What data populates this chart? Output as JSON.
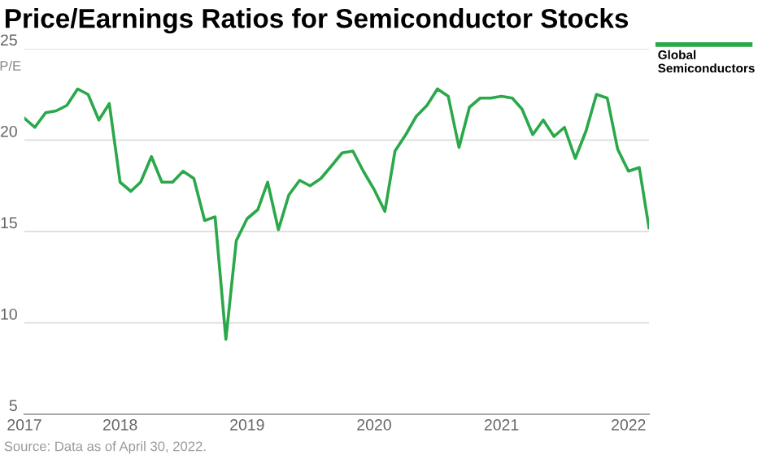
{
  "chart_data": {
    "type": "line",
    "title": "Price/Earnings Ratios for Semiconductor Stocks",
    "ylabel": "P/E",
    "x": [
      "2017-04",
      "2017-05",
      "2017-06",
      "2017-07",
      "2017-08",
      "2017-09",
      "2017-10",
      "2017-11",
      "2017-12",
      "2018-01",
      "2018-02",
      "2018-03",
      "2018-04",
      "2018-05",
      "2018-06",
      "2018-07",
      "2018-08",
      "2018-09",
      "2018-10",
      "2018-11",
      "2018-12",
      "2019-01",
      "2019-02",
      "2019-03",
      "2019-04",
      "2019-05",
      "2019-06",
      "2019-07",
      "2019-08",
      "2019-09",
      "2019-10",
      "2019-11",
      "2019-12",
      "2020-01",
      "2020-02",
      "2020-03",
      "2020-04",
      "2020-05",
      "2020-06",
      "2020-07",
      "2020-08",
      "2020-09",
      "2020-10",
      "2020-11",
      "2020-12",
      "2021-01",
      "2021-02",
      "2021-03",
      "2021-04",
      "2021-05",
      "2021-06",
      "2021-07",
      "2021-08",
      "2021-09",
      "2021-10",
      "2021-11",
      "2021-12",
      "2022-01",
      "2022-02",
      "2022-03"
    ],
    "series": [
      {
        "name": "Global Semiconductors",
        "color": "#2aa84a",
        "values": [
          21.2,
          20.7,
          21.5,
          21.6,
          21.9,
          22.8,
          22.5,
          21.1,
          22.0,
          17.7,
          17.2,
          17.7,
          19.1,
          17.7,
          17.7,
          18.3,
          17.9,
          15.6,
          15.8,
          9.1,
          14.5,
          15.7,
          16.2,
          17.7,
          15.1,
          17.0,
          17.8,
          17.5,
          17.9,
          18.6,
          19.3,
          19.4,
          18.3,
          17.3,
          16.1,
          19.4,
          20.3,
          21.3,
          21.9,
          22.8,
          22.4,
          19.6,
          21.8,
          22.3,
          22.3,
          22.4,
          22.3,
          21.7,
          20.3,
          21.1,
          20.2,
          20.7,
          19.0,
          20.5,
          22.5,
          22.3,
          19.5,
          18.3,
          18.5,
          15.2
        ]
      }
    ],
    "xlim": [
      "2017-04",
      "2022-03"
    ],
    "xticks": [
      {
        "value": "2017-04",
        "label": "2017"
      },
      {
        "value": "2018-01",
        "label": "2018"
      },
      {
        "value": "2019-01",
        "label": "2019"
      },
      {
        "value": "2020-01",
        "label": "2020"
      },
      {
        "value": "2021-01",
        "label": "2021"
      },
      {
        "value": "2022-01",
        "label": "2022"
      }
    ],
    "ylim": [
      5,
      25
    ],
    "yticks": [
      5,
      10,
      15,
      20,
      25
    ],
    "grid": "y",
    "legend": "top right",
    "marker": "none",
    "line_style": "solid",
    "annotations": [
      "Source: Data as of April 30, 2022."
    ]
  }
}
